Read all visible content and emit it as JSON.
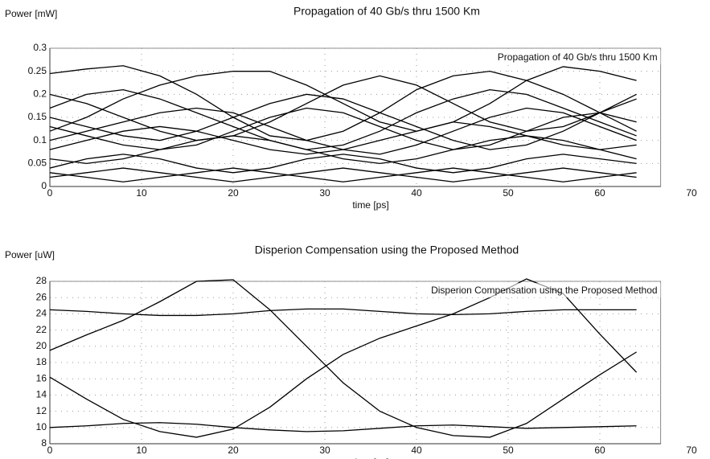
{
  "chart_data": [
    {
      "type": "line",
      "title": "Propagation of 40 Gb/s thru 1500 Km",
      "y_label": "Power [mW]",
      "x_label": "time [ps]",
      "annotation": "Propagation of 40 Gb/s thru 1500 Km",
      "color": "#000000",
      "grid": true,
      "xlim": [
        0,
        70
      ],
      "xticks": [
        0,
        10,
        20,
        30,
        40,
        50,
        60,
        70
      ],
      "ylim": [
        0,
        0.3
      ],
      "yticks": [
        0,
        0.05,
        0.1,
        0.15,
        0.2,
        0.25,
        0.3
      ],
      "x": [
        0,
        4,
        8,
        12,
        16,
        20,
        24,
        28,
        32,
        36,
        40,
        44,
        48,
        52,
        56,
        60,
        64
      ],
      "series": [
        {
          "values": [
            0.245,
            0.255,
            0.262,
            0.24,
            0.2,
            0.15,
            0.11,
            0.1,
            0.12,
            0.16,
            0.21,
            0.24,
            0.25,
            0.23,
            0.2,
            0.16,
            0.12
          ]
        },
        {
          "values": [
            0.12,
            0.15,
            0.19,
            0.22,
            0.24,
            0.25,
            0.25,
            0.22,
            0.18,
            0.14,
            0.12,
            0.14,
            0.18,
            0.23,
            0.26,
            0.25,
            0.23
          ]
        },
        {
          "values": [
            0.2,
            0.18,
            0.15,
            0.12,
            0.1,
            0.11,
            0.14,
            0.18,
            0.22,
            0.24,
            0.22,
            0.18,
            0.14,
            0.12,
            0.13,
            0.16,
            0.2
          ]
        },
        {
          "values": [
            0.17,
            0.2,
            0.21,
            0.19,
            0.16,
            0.13,
            0.1,
            0.08,
            0.09,
            0.12,
            0.16,
            0.19,
            0.21,
            0.2,
            0.17,
            0.14,
            0.11
          ]
        },
        {
          "values": [
            0.15,
            0.13,
            0.11,
            0.1,
            0.12,
            0.15,
            0.18,
            0.2,
            0.19,
            0.16,
            0.13,
            0.1,
            0.08,
            0.09,
            0.12,
            0.16,
            0.19
          ]
        },
        {
          "values": [
            0.1,
            0.12,
            0.14,
            0.16,
            0.17,
            0.16,
            0.13,
            0.1,
            0.08,
            0.07,
            0.09,
            0.12,
            0.15,
            0.17,
            0.16,
            0.13,
            0.1
          ]
        },
        {
          "values": [
            0.13,
            0.11,
            0.09,
            0.08,
            0.09,
            0.12,
            0.15,
            0.17,
            0.16,
            0.13,
            0.1,
            0.08,
            0.09,
            0.12,
            0.15,
            0.16,
            0.14
          ]
        },
        {
          "values": [
            0.08,
            0.1,
            0.12,
            0.13,
            0.12,
            0.1,
            0.08,
            0.07,
            0.08,
            0.1,
            0.12,
            0.14,
            0.13,
            0.11,
            0.09,
            0.08,
            0.09
          ]
        },
        {
          "values": [
            0.06,
            0.05,
            0.06,
            0.08,
            0.1,
            0.11,
            0.1,
            0.08,
            0.06,
            0.05,
            0.06,
            0.08,
            0.1,
            0.11,
            0.1,
            0.08,
            0.06
          ]
        },
        {
          "values": [
            0.04,
            0.06,
            0.07,
            0.06,
            0.04,
            0.03,
            0.04,
            0.06,
            0.07,
            0.06,
            0.04,
            0.03,
            0.04,
            0.06,
            0.07,
            0.06,
            0.05
          ]
        },
        {
          "values": [
            0.02,
            0.03,
            0.04,
            0.03,
            0.02,
            0.01,
            0.02,
            0.03,
            0.04,
            0.03,
            0.02,
            0.01,
            0.02,
            0.03,
            0.04,
            0.03,
            0.02
          ]
        },
        {
          "values": [
            0.03,
            0.02,
            0.01,
            0.02,
            0.03,
            0.04,
            0.03,
            0.02,
            0.01,
            0.02,
            0.03,
            0.04,
            0.03,
            0.02,
            0.01,
            0.02,
            0.03
          ]
        }
      ]
    },
    {
      "type": "line",
      "title": "Disperion Compensation using the Proposed Method",
      "y_label": "Power [uW]",
      "x_label": "time [ps]",
      "annotation": "Disperion Compensation using the Proposed Method",
      "color": "#000000",
      "grid": true,
      "xlim": [
        0,
        70
      ],
      "xticks": [
        0,
        10,
        20,
        30,
        40,
        50,
        60,
        70
      ],
      "ylim": [
        8,
        28
      ],
      "yticks": [
        8,
        10,
        12,
        14,
        16,
        18,
        20,
        22,
        24,
        26,
        28
      ],
      "x": [
        0,
        4,
        8,
        12,
        16,
        20,
        24,
        28,
        32,
        36,
        40,
        44,
        48,
        52,
        56,
        60,
        64
      ],
      "series": [
        {
          "values": [
            19.5,
            21.4,
            23.2,
            25.5,
            28.0,
            28.2,
            24.5,
            20.0,
            15.5,
            12.0,
            10.0,
            9.0,
            8.8,
            10.5,
            13.5,
            16.5,
            19.3
          ]
        },
        {
          "values": [
            16.2,
            13.5,
            11.0,
            9.5,
            8.8,
            9.8,
            12.5,
            16.0,
            19.0,
            21.0,
            22.5,
            24.0,
            26.0,
            28.3,
            26.5,
            21.5,
            16.8
          ]
        },
        {
          "values": [
            24.5,
            24.3,
            24.0,
            23.8,
            23.8,
            24.0,
            24.4,
            24.6,
            24.6,
            24.3,
            24.0,
            23.9,
            24.0,
            24.3,
            24.5,
            24.5,
            24.5
          ]
        },
        {
          "values": [
            10.0,
            10.2,
            10.5,
            10.6,
            10.4,
            10.0,
            9.7,
            9.5,
            9.6,
            9.9,
            10.2,
            10.3,
            10.1,
            9.9,
            10.0,
            10.1,
            10.2
          ]
        }
      ]
    }
  ]
}
